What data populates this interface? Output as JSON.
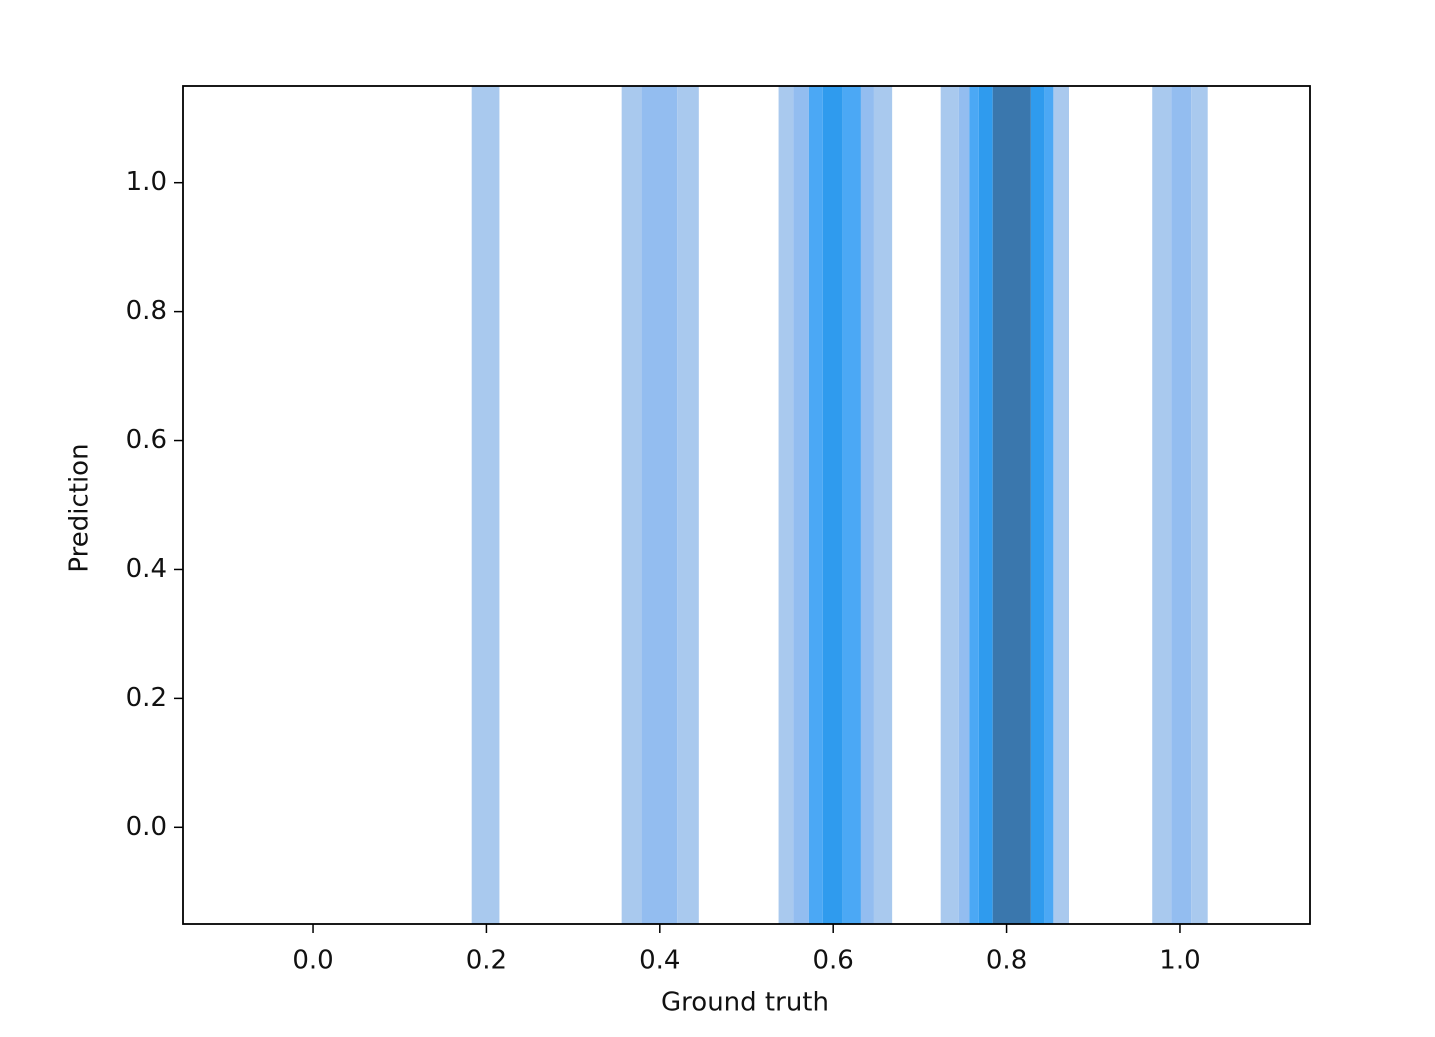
{
  "chart_data": {
    "type": "histogram2d",
    "xlabel": "Ground truth",
    "ylabel": "Prediction",
    "xlim": [
      -0.15,
      1.15
    ],
    "ylim": [
      -0.15,
      1.15
    ],
    "xticks": [
      {
        "value": 0,
        "label": "0.0"
      },
      0.2,
      0.4,
      0.6,
      0.8,
      {
        "value": 1,
        "label": "1.0"
      }
    ],
    "yticks": [
      {
        "value": 0,
        "label": "0.0"
      },
      0.2,
      0.4,
      0.6,
      0.8,
      {
        "value": 1,
        "label": "1.0"
      }
    ],
    "colors": [
      "#a9c9ee",
      "#93bdf0",
      "#4ba8f5",
      "#2f9bee",
      "#3a77ad"
    ],
    "cells": [
      {
        "x": [
          0.183,
          0.215
        ],
        "count": 1
      },
      {
        "x": [
          0.356,
          0.379
        ],
        "count": 1
      },
      {
        "x": [
          0.379,
          0.42
        ],
        "count": 2
      },
      {
        "x": [
          0.42,
          0.445
        ],
        "count": 1
      },
      {
        "x": [
          0.537,
          0.554
        ],
        "count": 1
      },
      {
        "x": [
          0.554,
          0.572
        ],
        "count": 2
      },
      {
        "x": [
          0.572,
          0.588
        ],
        "count": 3
      },
      {
        "x": [
          0.588,
          0.611
        ],
        "count": 4
      },
      {
        "x": [
          0.611,
          0.632
        ],
        "count": 3
      },
      {
        "x": [
          0.632,
          0.647
        ],
        "count": 2
      },
      {
        "x": [
          0.647,
          0.668
        ],
        "count": 1
      },
      {
        "x": [
          0.724,
          0.745
        ],
        "count": 1
      },
      {
        "x": [
          0.745,
          0.757
        ],
        "count": 2
      },
      {
        "x": [
          0.757,
          0.768
        ],
        "count": 3
      },
      {
        "x": [
          0.768,
          0.784
        ],
        "count": 4
      },
      {
        "x": [
          0.784,
          0.828
        ],
        "count": 5
      },
      {
        "x": [
          0.828,
          0.844
        ],
        "count": 4
      },
      {
        "x": [
          0.844,
          0.854
        ],
        "count": 3
      },
      {
        "x": [
          0.854,
          0.872
        ],
        "count": 1
      },
      {
        "x": [
          0.968,
          0.99
        ],
        "count": 1
      },
      {
        "x": [
          0.99,
          1.013
        ],
        "count": 2
      },
      {
        "x": [
          1.013,
          1.032
        ],
        "count": 1
      }
    ]
  }
}
